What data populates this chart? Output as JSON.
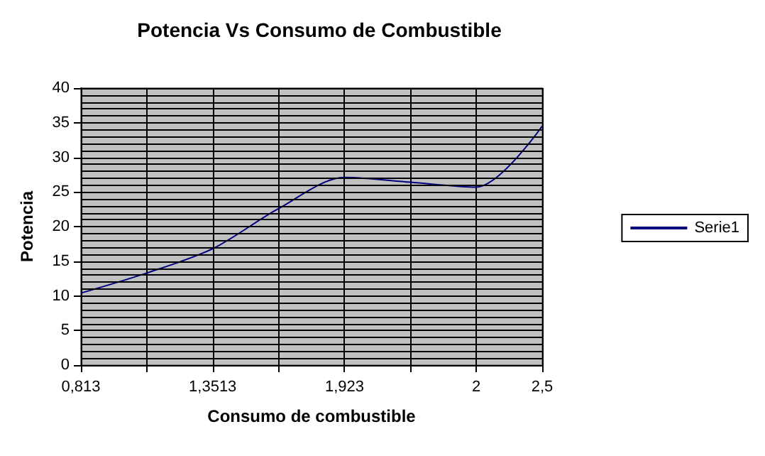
{
  "chart_data": {
    "type": "line",
    "title": "Potencia Vs Consumo de Combustible",
    "xlabel": "Consumo de combustible",
    "ylabel": "Potencia",
    "categories": [
      "0,813",
      null,
      "1,3513",
      null,
      "1,923",
      null,
      "2",
      "2,5"
    ],
    "series": [
      {
        "name": "Serie1",
        "color": "#000080",
        "values": [
          10.4,
          13.3,
          16.8,
          22.6,
          27.1,
          26.4,
          25.7,
          34.5
        ]
      }
    ],
    "ylim": [
      0,
      40
    ],
    "yticks": [
      0,
      {
        "value": 1,
        "label": null
      },
      {
        "value": 2,
        "label": null
      },
      {
        "value": 3,
        "label": null
      },
      {
        "value": 4,
        "label": null
      },
      5,
      {
        "value": 6,
        "label": null
      },
      {
        "value": 7,
        "label": null
      },
      {
        "value": 8,
        "label": null
      },
      {
        "value": 9,
        "label": null
      },
      10,
      {
        "value": 11,
        "label": null
      },
      {
        "value": 12,
        "label": null
      },
      {
        "value": 13,
        "label": null
      },
      {
        "value": 14,
        "label": null
      },
      15,
      {
        "value": 16,
        "label": null
      },
      {
        "value": 17,
        "label": null
      },
      {
        "value": 18,
        "label": null
      },
      {
        "value": 19,
        "label": null
      },
      20,
      {
        "value": 21,
        "label": null
      },
      {
        "value": 22,
        "label": null
      },
      {
        "value": 23,
        "label": null
      },
      {
        "value": 24,
        "label": null
      },
      25,
      {
        "value": 26,
        "label": null
      },
      {
        "value": 27,
        "label": null
      },
      {
        "value": 28,
        "label": null
      },
      {
        "value": 29,
        "label": null
      },
      30,
      {
        "value": 31,
        "label": null
      },
      {
        "value": 32,
        "label": null
      },
      {
        "value": 33,
        "label": null
      },
      {
        "value": 34,
        "label": null
      },
      35,
      {
        "value": 36,
        "label": null
      },
      {
        "value": 37,
        "label": null
      },
      {
        "value": 38,
        "label": null
      },
      {
        "value": 39,
        "label": null
      },
      40
    ],
    "grid": true,
    "legend": "right",
    "marker": "none",
    "line_style": "solid"
  }
}
